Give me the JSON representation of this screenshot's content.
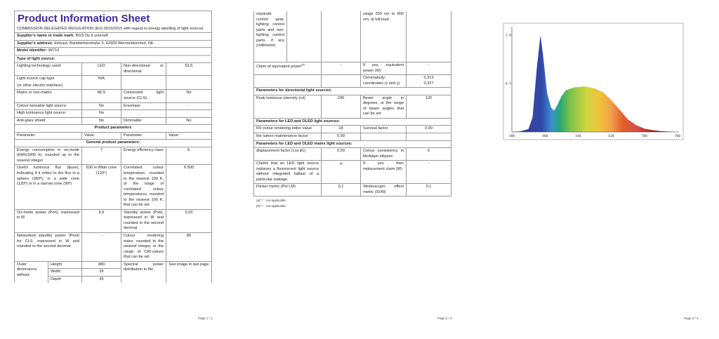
{
  "page1": {
    "title": "Product Information Sheet",
    "regulation": "COMMISSION DELEGATED REGULATION (EU) 2019/2015 with regard to energy labelling of light sources",
    "supplier_label": "Supplier's name or trade mark:",
    "supplier_value": "BGS Do it yourself",
    "address_label": "Supplier's address:",
    "address_value": "Einkauf, Bandwirkerstraße 3, 42929 Wermelskirchen, DE",
    "model_label": "Model identifier:",
    "model_value": "99710",
    "type_heading": "Type of light source:",
    "rows": [
      {
        "p1": "Lighting technology used:",
        "v1": "LED",
        "p2": "Non-directional or directional:",
        "v2": "DLS"
      },
      {
        "p1": "Light source cap-type",
        "p1b": "(or other electric interface)",
        "v1": "N/A",
        "p2": "",
        "v2": ""
      },
      {
        "p1": "Mains or non-mains:",
        "v1": "MLS",
        "p2": "Connected light source (CLS):",
        "v2": "No"
      },
      {
        "p1": "Colour-tuneable light source:",
        "v1": "No",
        "p2": "Envelope:",
        "v2": "-"
      },
      {
        "p1": "High luminance light source:",
        "v1": "No",
        "p2": "",
        "v2": ""
      },
      {
        "p1": "Anti-glare shield:",
        "v1": "No",
        "p2": "Dimmable:",
        "v2": "No"
      }
    ],
    "product_parameters": "Product parameters",
    "col_parameter": "Parameter",
    "col_value": "Value",
    "general_heading": "General product parameters:",
    "params": [
      {
        "p1": "Energy consumption in on-mode (kWh/1000 h), rounded up to the nearest integer",
        "v1": "7",
        "p2": "Energy efficiency class",
        "v2": "E"
      },
      {
        "p1": "Useful luminous flux (ϕuse), indicating if it refers to the flux in a sphere (360º), in a wide cone (120º) or in a narrow cone (90º)",
        "v1": "630 in Wide cone (120°)",
        "p2": "Correlated colour temperature, rounded to the nearest 100 K, or the range of correlated colour temperatures, rounded to the nearest 100 K, that can be set",
        "v2": "6 500"
      },
      {
        "p1": "On-mode power (Pon), expressed in W",
        "v1": "6,6",
        "p2": "Standby power (Psb), expressed in W and rounded to the second decimal",
        "v2": "0,00"
      },
      {
        "p1": "Networked standby power (Pnet) for CLS, expressed in W and rounded to the second decimal",
        "v1": "-",
        "p2": "Colour rendering index, rounded to the nearest integer, or the range of CRI-values that can be set",
        "v2": "80"
      }
    ],
    "outer_label": "Outer dimensions without",
    "dims": [
      {
        "label": "Height",
        "value": "480"
      },
      {
        "label": "Width",
        "value": "35"
      },
      {
        "label": "Depth",
        "value": "35"
      }
    ],
    "spd_label": "Spectral power distribution in the",
    "spd_value": "See image in last page",
    "footer": "Page 1 / 3"
  },
  "page2": {
    "outer_cont": "separate control gear, lighting control parts and non-lighting control parts, if any (millimetre)",
    "spd_cont": "range 250 nm to 800 nm, at full-load",
    "claim_label": "Claim of equivalent power",
    "claim_sup": "(a)",
    "claim_value": "-",
    "equiv_label": "If yes, equivalent power (W)",
    "equiv_value": "-",
    "chroma_label": "Chromaticity coordinates (x and y)",
    "chroma_x": "0,313",
    "chroma_y": "0,327",
    "directional_heading": "Parameters for directional light sources:",
    "peak_label": "Peak luminous intensity (cd)",
    "peak_value": "240",
    "beam_label": "Beam angle in degrees, or the range of beam angles that can be set",
    "beam_value": "120",
    "led_heading": "Parameters for LED and OLED light sources:",
    "r9_label": "R9 colour rendering index value",
    "r9_value": "18",
    "survival_label": "Survival factor",
    "survival_value": "0,90",
    "lumen_label": "the lumen maintenance factor",
    "lumen_value": "0,90",
    "mains_heading": "Parameters for LED and OLED mains light sources:",
    "disp_label": "displacement factor (cos ϕ1)",
    "disp_value": "0,59",
    "mcadam_label": "Colour consistency in McAdam ellipses",
    "mcadam_value": "6",
    "claims_label": "Claims that an LED light source replaces a fluorescent light source without integrated ballast of a particular wattage.",
    "claims_value": "-(b)",
    "repl_label": "If yes then replacement claim (W)",
    "repl_value": "-",
    "flicker_label": "Flicker metric (Pst LM)",
    "flicker_value": "0,1",
    "strobo_label": "Stroboscopic effect metric (SVM)",
    "strobo_value": "0,1",
    "note_a": "(a)\"-\" : not applicable;",
    "note_b": "(b)\"-\" : not applicable;",
    "footer": "Page 2 / 3"
  },
  "page3": {
    "footer": "Page 3 / 3"
  },
  "chart_data": {
    "type": "area",
    "title": "",
    "xlabel": "",
    "ylabel": "",
    "xlim": [
      380,
      780
    ],
    "ylim": [
      0,
      1.1
    ],
    "x_ticks": [
      "380",
      "460",
      "540",
      "620",
      "700",
      "780"
    ],
    "y_ticks": [
      "0.5",
      "1.0"
    ],
    "fill": "visible-spectrum gradient",
    "grid": false,
    "x": [
      380,
      400,
      420,
      430,
      440,
      449,
      455,
      465,
      475,
      482,
      490,
      500,
      510,
      530,
      555,
      580,
      600,
      620,
      640,
      660,
      680,
      700,
      720,
      740,
      760,
      780
    ],
    "values": [
      0,
      0.005,
      0.03,
      0.15,
      0.65,
      1.0,
      0.8,
      0.4,
      0.25,
      0.22,
      0.28,
      0.37,
      0.43,
      0.46,
      0.47,
      0.45,
      0.41,
      0.33,
      0.23,
      0.13,
      0.07,
      0.035,
      0.018,
      0.008,
      0.003,
      0
    ]
  }
}
